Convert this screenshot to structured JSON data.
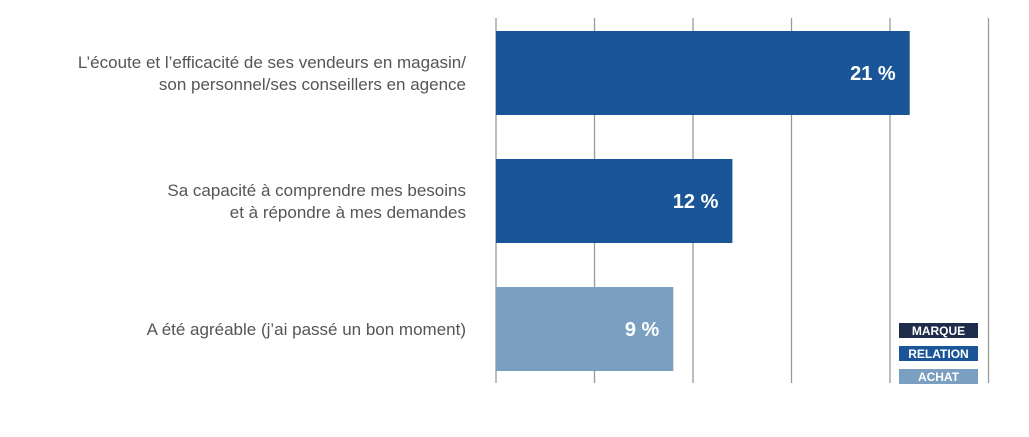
{
  "chart_data": {
    "type": "bar",
    "orientation": "horizontal",
    "categories": [
      [
        "L’écoute et l’efficacité de ses vendeurs en magasin/",
        "son personnel/ses conseillers en agence"
      ],
      [
        "Sa capacité à comprendre mes besoins",
        "et à répondre à mes demandes"
      ],
      [
        "A été agréable (j’ai passé un bon moment)"
      ]
    ],
    "values": [
      21,
      12,
      9
    ],
    "value_labels": [
      "21 %",
      "12 %",
      "9 %"
    ],
    "bar_groups": [
      "RELATION",
      "RELATION",
      "ACHAT"
    ],
    "unit": "%",
    "xlim": [
      0,
      25
    ],
    "grid_step": 5,
    "grid": true,
    "axis_tick_labels_shown": false,
    "legend": {
      "placement": "bottom-right",
      "items": [
        {
          "label": "MARQUE",
          "color": "#1f2b4a"
        },
        {
          "label": "RELATION",
          "color": "#1a5597"
        },
        {
          "label": "ACHAT",
          "color": "#7a9fc1"
        }
      ]
    }
  }
}
